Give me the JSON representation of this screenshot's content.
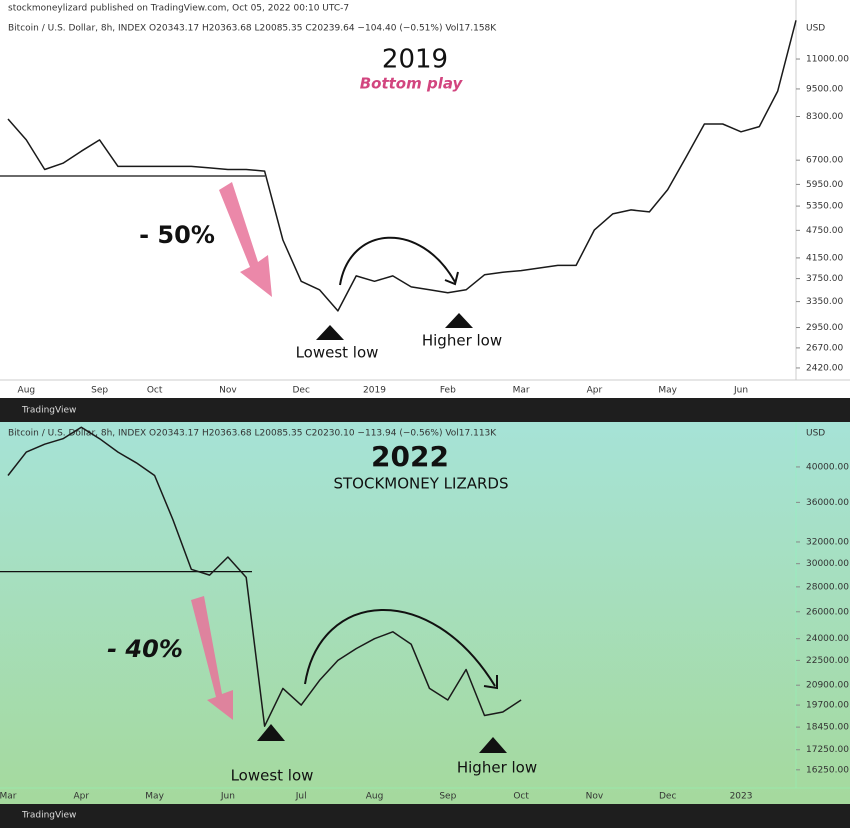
{
  "chart_data": [
    {
      "type": "line",
      "publisher": "stockmoneylizard published on TradingView.com, Oct 05, 2022 00:10 UTC-7",
      "header": "Bitcoin / U.S. Dollar, 8h, INDEX  O20343.17 H20363.68 L20085.35 C20239.64 −104.40 (−0.51%) Vol17.158K",
      "currency": "USD",
      "title": "2019",
      "subtitle": "Bottom play",
      "annotations": [
        "- 50%",
        "Lowest low",
        "Higher low"
      ],
      "brand": "TradingView",
      "categories": [
        null,
        "Aug",
        null,
        null,
        null,
        "Sep",
        null,
        null,
        "Oct",
        null,
        null,
        null,
        "Nov",
        null,
        null,
        null,
        "Dec",
        null,
        null,
        null,
        "2019",
        null,
        null,
        null,
        "Feb",
        null,
        null,
        null,
        "Mar",
        null,
        null,
        null,
        "Apr",
        null,
        null,
        null,
        "May",
        null,
        null,
        null,
        "Jun",
        null,
        null,
        null
      ],
      "values": [
        8200,
        7400,
        6400,
        6600,
        7000,
        7400,
        6500,
        6500,
        6500,
        6500,
        6500,
        6450,
        6400,
        6400,
        6350,
        4530,
        3700,
        3550,
        3200,
        3800,
        3700,
        3800,
        3600,
        3550,
        3500,
        3550,
        3820,
        3870,
        3900,
        3950,
        4000,
        4000,
        4760,
        5150,
        5250,
        5200,
        5800,
        6800,
        8000,
        8000,
        7700,
        7900,
        9400,
        13300
      ],
      "color": "#1a1a1a",
      "level": 6200,
      "log_scale": true,
      "ylim": [
        2315,
        13450
      ],
      "yticks": [
        {
          "value": 2420,
          "label": "2420.00"
        },
        {
          "value": 2670,
          "label": "2670.00"
        },
        {
          "value": 2950,
          "label": "2950.00"
        },
        {
          "value": 3350,
          "label": "3350.00"
        },
        {
          "value": 3750,
          "label": "3750.00"
        },
        {
          "value": 4150,
          "label": "4150.00"
        },
        {
          "value": 4750,
          "label": "4750.00"
        },
        {
          "value": 5350,
          "label": "5350.00"
        },
        {
          "value": 5950,
          "label": "5950.00"
        },
        {
          "value": 6700,
          "label": "6700.00"
        },
        {
          "value": 8300,
          "label": "8300.00"
        },
        {
          "value": 9500,
          "label": "9500.00"
        },
        {
          "value": 11000,
          "label": "11000.00"
        }
      ]
    },
    {
      "type": "line",
      "header": "Bitcoin / U.S. Dollar, 8h, INDEX  O20343.17 H20363.68 L20085.35 C20230.10 −113.94 (−0.56%) Vol17.113K",
      "currency": "USD",
      "title": "2022",
      "subtitle": "STOCKMONEY LIZARDS",
      "annotations": [
        "- 40%",
        "Lowest low",
        "Higher low"
      ],
      "brand": "TradingView",
      "categories": [
        "Mar",
        null,
        null,
        null,
        "Apr",
        null,
        null,
        null,
        "May",
        null,
        null,
        null,
        "Jun",
        null,
        null,
        null,
        "Jul",
        null,
        null,
        null,
        "Aug",
        null,
        null,
        null,
        "Sep",
        null,
        null,
        null,
        "Oct",
        null,
        null,
        null,
        "Nov",
        null,
        null,
        null,
        "Dec",
        null,
        null,
        null,
        "2023",
        null,
        null,
        null
      ],
      "values": [
        39000,
        41800,
        42800,
        43500,
        45000,
        43500,
        41800,
        40500,
        39000,
        34200,
        29500,
        29000,
        30600,
        28800,
        18500,
        20700,
        19700,
        21200,
        22500,
        23300,
        24000,
        24500,
        23600,
        20700,
        20000,
        21900,
        19100,
        19300,
        20000,
        null,
        null,
        null,
        null,
        null,
        null,
        null,
        null,
        null,
        null,
        null,
        null,
        null,
        null,
        null
      ],
      "color": "#1a1a1a",
      "level": 29300,
      "log_scale": true,
      "ylim": [
        15440,
        45450
      ],
      "yticks": [
        {
          "value": 16250,
          "label": "16250.00"
        },
        {
          "value": 17250,
          "label": "17250.00"
        },
        {
          "value": 18450,
          "label": "18450.00"
        },
        {
          "value": 19700,
          "label": "19700.00"
        },
        {
          "value": 20900,
          "label": "20900.00"
        },
        {
          "value": 22500,
          "label": "22500.00"
        },
        {
          "value": 24000,
          "label": "24000.00"
        },
        {
          "value": 26000,
          "label": "26000.00"
        },
        {
          "value": 28000,
          "label": "28000.00"
        },
        {
          "value": 30000,
          "label": "30000.00"
        },
        {
          "value": 32000,
          "label": "32000.00"
        },
        {
          "value": 36000,
          "label": "36000.00"
        },
        {
          "value": 40000,
          "label": "40000.00"
        }
      ]
    }
  ]
}
